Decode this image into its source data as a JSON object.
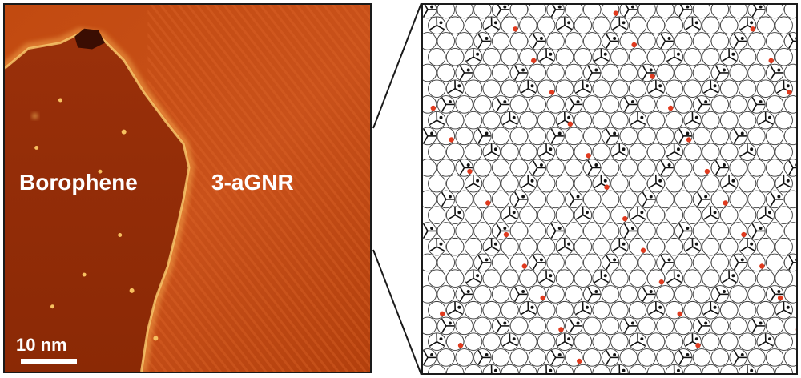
{
  "figure": {
    "left_panel": {
      "label_left": "Borophene",
      "label_right": "3-aGNR",
      "scale_label": "10 nm"
    },
    "colors": {
      "stm_dark": "#8f2a05",
      "stm_mid": "#b8400a",
      "stm_bright": "#d2561a",
      "stm_highlight": "#f6c060",
      "atom_outline": "#3a3a3a",
      "bond_dark": "#111111",
      "dopant_red": "#e03a1e"
    }
  }
}
